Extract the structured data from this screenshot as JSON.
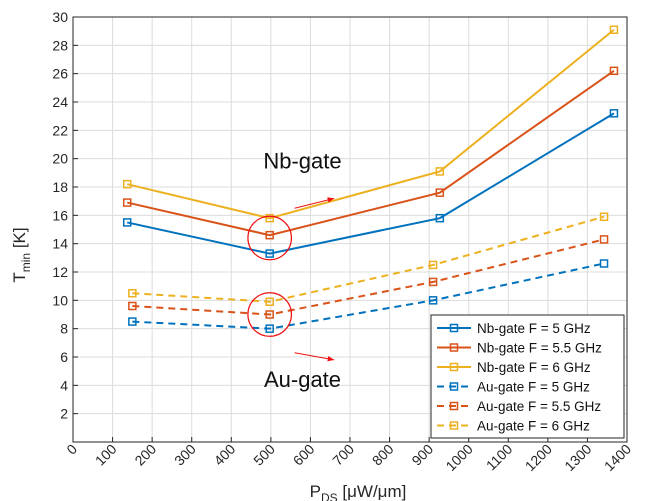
{
  "chart_data": {
    "type": "line",
    "xlabel": {
      "main": "P",
      "sub": "DS",
      "unit": " [μW/μm]"
    },
    "ylabel": {
      "main": "T",
      "sub": "min",
      "unit": " [K]"
    },
    "xlim": [
      0,
      1400
    ],
    "ylim": [
      0,
      30
    ],
    "xticks": [
      0,
      100,
      200,
      300,
      400,
      500,
      600,
      700,
      800,
      900,
      1000,
      1100,
      1200,
      1300,
      1400
    ],
    "yticks": [
      2,
      4,
      6,
      8,
      10,
      12,
      14,
      16,
      18,
      20,
      22,
      24,
      26,
      28,
      30
    ],
    "grid": true,
    "legend_position": "bottom-right",
    "series": [
      {
        "name": "Nb-gate F = 5 GHz",
        "color": "#0072BD",
        "dash": "solid",
        "x": [
          137,
          497,
          927,
          1367
        ],
        "y": [
          15.5,
          13.3,
          15.8,
          23.2
        ]
      },
      {
        "name": "Nb-gate F = 5.5 GHz",
        "color": "#D95319",
        "dash": "solid",
        "x": [
          137,
          497,
          927,
          1367
        ],
        "y": [
          16.9,
          14.6,
          17.6,
          26.2
        ]
      },
      {
        "name": "Nb-gate F = 6 GHz",
        "color": "#EDB120",
        "dash": "solid",
        "x": [
          137,
          497,
          927,
          1367
        ],
        "y": [
          18.2,
          15.8,
          19.1,
          29.1
        ]
      },
      {
        "name": "Au-gate F = 5 GHz",
        "color": "#0072BD",
        "dash": "dashed",
        "x": [
          150,
          497,
          910,
          1342
        ],
        "y": [
          8.5,
          8.0,
          10.0,
          12.6
        ]
      },
      {
        "name": "Au-gate F = 5.5 GHz",
        "color": "#D95319",
        "dash": "dashed",
        "x": [
          150,
          497,
          910,
          1342
        ],
        "y": [
          9.6,
          9.0,
          11.3,
          14.3
        ]
      },
      {
        "name": "Au-gate F = 6 GHz",
        "color": "#EDB120",
        "dash": "dashed",
        "x": [
          150,
          497,
          910,
          1342
        ],
        "y": [
          10.5,
          9.9,
          12.5,
          15.9
        ]
      }
    ],
    "annotations": [
      {
        "text": "Nb-gate",
        "x": 580,
        "y": 19.3
      },
      {
        "text": "Au-gate",
        "x": 580,
        "y": 3.9
      }
    ],
    "highlight_circles": [
      {
        "cx": 497,
        "cy": 14.4,
        "r": 55,
        "color": "#EE1111"
      },
      {
        "cx": 497,
        "cy": 9.0,
        "r": 55,
        "color": "#EE1111"
      }
    ],
    "arrows": [
      {
        "from": [
          560,
          16.5
        ],
        "to": [
          660,
          17.2
        ],
        "color": "#EE1111"
      },
      {
        "from": [
          560,
          6.3
        ],
        "to": [
          660,
          5.8
        ],
        "color": "#EE1111"
      }
    ]
  }
}
